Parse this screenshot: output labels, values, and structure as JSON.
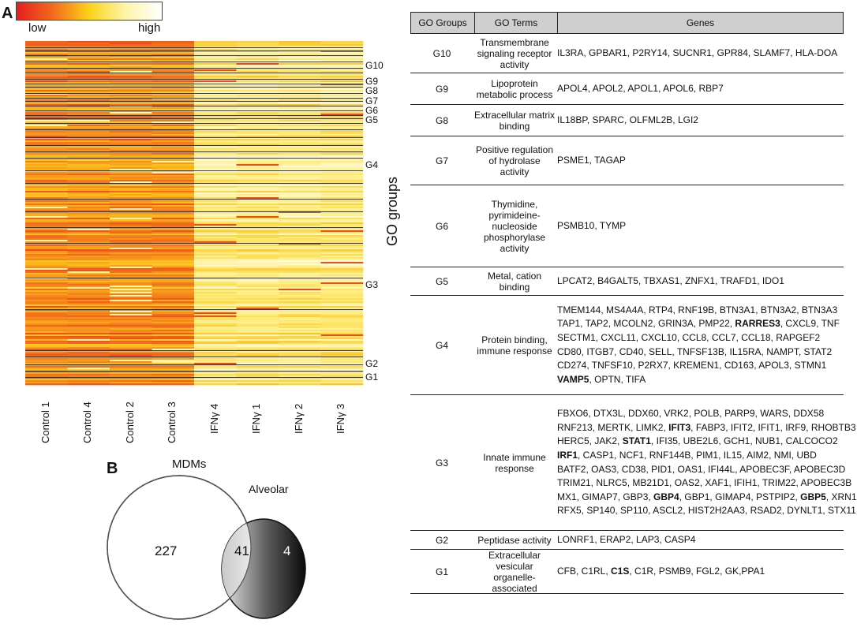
{
  "panel_a": {
    "label": "A",
    "scale": {
      "low": "low",
      "high": "high"
    },
    "columns": [
      "Control 1",
      "Control 4",
      "Control 2",
      "Control 3",
      "IFNγ 4",
      "IFNγ 1",
      "IFNγ 2",
      "IFNγ 3"
    ],
    "axis_title": "GO groups",
    "group_labels": [
      "G10",
      "G9",
      "G8",
      "G7",
      "G6",
      "G5",
      "G4",
      "G3",
      "G2",
      "G1"
    ],
    "colors": {
      "low": "#e61e1e",
      "mid": "#f7b21a",
      "high": "#fffbe6"
    }
  },
  "table": {
    "headers": [
      "GO Groups",
      "GO Terms",
      "Genes"
    ],
    "rows": [
      {
        "group": "G10",
        "term": "Transmembrane signaling receptor activity",
        "genes": [
          [
            {
              "t": "IL3RA, GPBAR1, P2RY14, SUCNR1, GPR84, SLAMF7, HLA-DOA"
            }
          ]
        ]
      },
      {
        "group": "G9",
        "term": "Lipoprotein metabolic process",
        "genes": [
          [
            {
              "t": "APOL4, APOL2, APOL1, APOL6, RBP7"
            }
          ]
        ]
      },
      {
        "group": "G8",
        "term": "Extracellular matrix binding",
        "genes": [
          [
            {
              "t": "IL18BP, SPARC, OLFML2B, LGI2"
            }
          ]
        ]
      },
      {
        "group": "G7",
        "term": "Positive regulation of hydrolase activity",
        "genes": [
          [
            {
              "t": "PSME1, TAGAP"
            }
          ]
        ]
      },
      {
        "group": "G6",
        "term": "Thymidine, pyrimideine-nucleoside phosphorylase activity",
        "genes": [
          [
            {
              "t": "PSMB10, TYMP"
            }
          ]
        ]
      },
      {
        "group": "G5",
        "term": "Metal, cation binding",
        "genes": [
          [
            {
              "t": "LPCAT2, B4GALT5, TBXAS1, ZNFX1, TRAFD1, IDO1"
            }
          ]
        ]
      },
      {
        "group": "G4",
        "term": "Protein binding, immune response",
        "genes": [
          [
            {
              "t": "TMEM144, MS4A4A, RTP4, RNF19B, BTN3A1, BTN3A2, BTN3A3"
            }
          ],
          [
            {
              "t": "TAP1, TAP2, MCOLN2, GRIN3A, PMP22, "
            },
            {
              "t": "RARRES3",
              "b": true
            },
            {
              "t": ", CXCL9, TNF"
            }
          ],
          [
            {
              "t": "SECTM1, CXCL11, CXCL10, CCL8, CCL7, CCL18, RAPGEF2"
            }
          ],
          [
            {
              "t": "CD80, ITGB7, CD40, SELL, TNFSF13B, IL15RA, NAMPT, STAT2"
            }
          ],
          [
            {
              "t": "CD274, TNFSF10, P2RX7, KREMEN1, CD163, APOL3, STMN1"
            }
          ],
          [
            {
              "t": "VAMP5",
              "b": true
            },
            {
              "t": ", OPTN, TIFA"
            }
          ]
        ]
      },
      {
        "group": "G3",
        "term": "Innate immune response",
        "genes": [
          [
            {
              "t": "FBXO6, DTX3L, DDX60, VRK2, POLB, PARP9, WARS, DDX58"
            }
          ],
          [
            {
              "t": "RNF213, MERTK, LIMK2, "
            },
            {
              "t": "IFIT3",
              "b": true
            },
            {
              "t": ", FABP3, IFIT2, IFIT1, IRF9, RHOBTB3"
            }
          ],
          [
            {
              "t": "HERC5, JAK2, "
            },
            {
              "t": "STAT1",
              "b": true
            },
            {
              "t": ", IFI35, UBE2L6, GCH1, NUB1, CALCOCO2"
            }
          ],
          [
            {
              "t": "IRF1",
              "b": true
            },
            {
              "t": ", CASP1, NCF1, RNF144B, PIM1, IL15, AIM2, NMI, UBD"
            }
          ],
          [
            {
              "t": "BATF2, OAS3, CD38, PID1, OAS1, IFI44L, APOBEC3F, APOBEC3D"
            }
          ],
          [
            {
              "t": "TRIM21, NLRC5, MB21D1, OAS2, XAF1, IFIH1, TRIM22, APOBEC3B"
            }
          ],
          [
            {
              "t": "MX1, GIMAP7, GBP3, "
            },
            {
              "t": "GBP4",
              "b": true
            },
            {
              "t": ", GBP1, GIMAP4, PSTPIP2, "
            },
            {
              "t": "GBP5",
              "b": true
            },
            {
              "t": ", XRN1"
            }
          ],
          [
            {
              "t": "RFX5, SP140, SP110, ASCL2, HIST2H2AA3, RSAD2, DYNLT1, STX11"
            }
          ]
        ]
      },
      {
        "group": "G2",
        "term": "Peptidase activity",
        "genes": [
          [
            {
              "t": "LONRF1, ERAP2, LAP3, CASP4"
            }
          ]
        ]
      },
      {
        "group": "G1",
        "term": "Extracellular vesicular organelle-associated",
        "genes": [
          [
            {
              "t": "CFB, C1RL, "
            },
            {
              "t": "C1S",
              "b": true
            },
            {
              "t": ", C1R, PSMB9, FGL2, GK,PPA1"
            }
          ]
        ]
      }
    ]
  },
  "panel_b": {
    "label": "B",
    "mdm_label": "MDMs",
    "alveolar_label": "Alveolar",
    "mdm_only": "227",
    "overlap": "41",
    "alveolar_only": "4"
  }
}
